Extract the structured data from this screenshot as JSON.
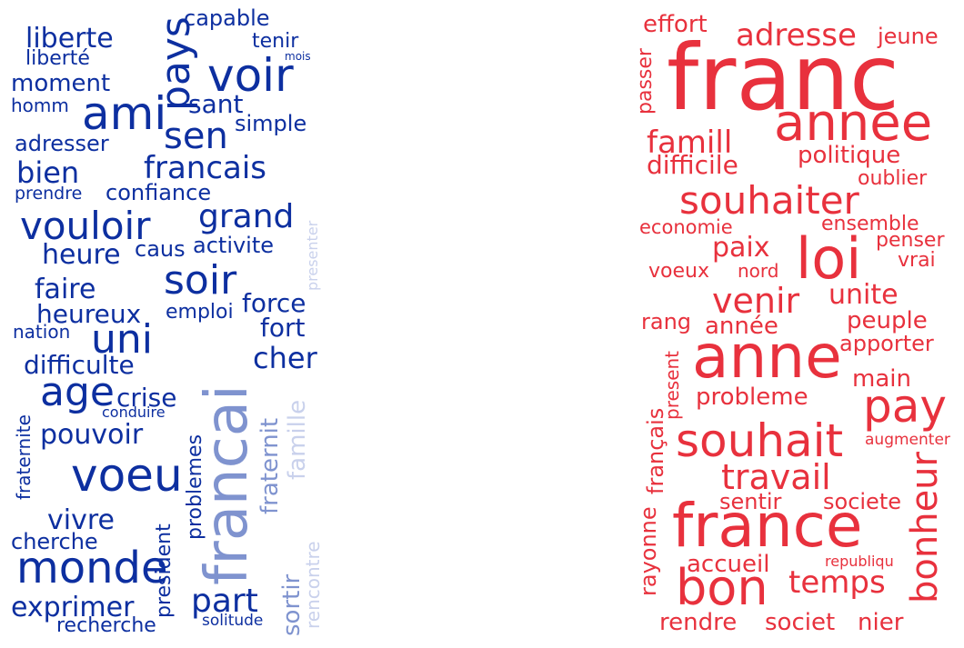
{
  "colors": {
    "blue_dark": "#0d2fa0",
    "blue_mid": "#7f93cf",
    "blue_light": "#c9d1ec",
    "red": "#e8313d",
    "background": "#ffffff"
  },
  "left_cloud": {
    "words": [
      {
        "text": "liberte",
        "color": "blue_dark"
      },
      {
        "text": "capable",
        "color": "blue_dark"
      },
      {
        "text": "tenir",
        "color": "blue_dark"
      },
      {
        "text": "liberté",
        "color": "blue_dark"
      },
      {
        "text": "mois",
        "color": "blue_dark"
      },
      {
        "text": "pays",
        "color": "blue_dark"
      },
      {
        "text": "voir",
        "color": "blue_dark"
      },
      {
        "text": "moment",
        "color": "blue_dark"
      },
      {
        "text": "homm",
        "color": "blue_dark"
      },
      {
        "text": "ami",
        "color": "blue_dark"
      },
      {
        "text": "sant",
        "color": "blue_dark"
      },
      {
        "text": "simple",
        "color": "blue_dark"
      },
      {
        "text": "sen",
        "color": "blue_dark"
      },
      {
        "text": "adresser",
        "color": "blue_dark"
      },
      {
        "text": "bien",
        "color": "blue_dark"
      },
      {
        "text": "francais",
        "color": "blue_dark"
      },
      {
        "text": "prendre",
        "color": "blue_dark"
      },
      {
        "text": "confiance",
        "color": "blue_dark"
      },
      {
        "text": "grand",
        "color": "blue_dark"
      },
      {
        "text": "vouloir",
        "color": "blue_dark"
      },
      {
        "text": "presenter",
        "color": "blue_light"
      },
      {
        "text": "heure",
        "color": "blue_dark"
      },
      {
        "text": "caus",
        "color": "blue_dark"
      },
      {
        "text": "activite",
        "color": "blue_dark"
      },
      {
        "text": "soir",
        "color": "blue_dark"
      },
      {
        "text": "faire",
        "color": "blue_dark"
      },
      {
        "text": "force",
        "color": "blue_dark"
      },
      {
        "text": "heureux",
        "color": "blue_dark"
      },
      {
        "text": "emploi",
        "color": "blue_dark"
      },
      {
        "text": "nation",
        "color": "blue_dark"
      },
      {
        "text": "uni",
        "color": "blue_dark"
      },
      {
        "text": "fort",
        "color": "blue_dark"
      },
      {
        "text": "cher",
        "color": "blue_dark"
      },
      {
        "text": "difficulte",
        "color": "blue_dark"
      },
      {
        "text": "francai",
        "color": "blue_mid"
      },
      {
        "text": "fraternite",
        "color": "blue_dark"
      },
      {
        "text": "age",
        "color": "blue_dark"
      },
      {
        "text": "crise",
        "color": "blue_dark"
      },
      {
        "text": "famille",
        "color": "blue_light"
      },
      {
        "text": "fraternit",
        "color": "blue_mid"
      },
      {
        "text": "conduire",
        "color": "blue_dark"
      },
      {
        "text": "pouvoir",
        "color": "blue_dark"
      },
      {
        "text": "problemes",
        "color": "blue_dark"
      },
      {
        "text": "voeu",
        "color": "blue_dark"
      },
      {
        "text": "vivre",
        "color": "blue_dark"
      },
      {
        "text": "rencontre",
        "color": "blue_light"
      },
      {
        "text": "cherche",
        "color": "blue_dark"
      },
      {
        "text": "president",
        "color": "blue_dark"
      },
      {
        "text": "monde",
        "color": "blue_dark"
      },
      {
        "text": "sortir",
        "color": "blue_mid"
      },
      {
        "text": "part",
        "color": "blue_dark"
      },
      {
        "text": "exprimer",
        "color": "blue_dark"
      },
      {
        "text": "solitude",
        "color": "blue_dark"
      },
      {
        "text": "recherche",
        "color": "blue_dark"
      }
    ]
  },
  "right_cloud": {
    "words": [
      {
        "text": "effort",
        "color": "red"
      },
      {
        "text": "adresse",
        "color": "red"
      },
      {
        "text": "jeune",
        "color": "red"
      },
      {
        "text": "passer",
        "color": "red"
      },
      {
        "text": "franc",
        "color": "red"
      },
      {
        "text": "annee",
        "color": "red"
      },
      {
        "text": "famill",
        "color": "red"
      },
      {
        "text": "politique",
        "color": "red"
      },
      {
        "text": "difficile",
        "color": "red"
      },
      {
        "text": "oublier",
        "color": "red"
      },
      {
        "text": "souhaiter",
        "color": "red"
      },
      {
        "text": "economie",
        "color": "red"
      },
      {
        "text": "ensemble",
        "color": "red"
      },
      {
        "text": "penser",
        "color": "red"
      },
      {
        "text": "paix",
        "color": "red"
      },
      {
        "text": "loi",
        "color": "red"
      },
      {
        "text": "vrai",
        "color": "red"
      },
      {
        "text": "voeux",
        "color": "red"
      },
      {
        "text": "nord",
        "color": "red"
      },
      {
        "text": "venir",
        "color": "red"
      },
      {
        "text": "unite",
        "color": "red"
      },
      {
        "text": "rang",
        "color": "red"
      },
      {
        "text": "année",
        "color": "red"
      },
      {
        "text": "peuple",
        "color": "red"
      },
      {
        "text": "present",
        "color": "red"
      },
      {
        "text": "anne",
        "color": "red"
      },
      {
        "text": "apporter",
        "color": "red"
      },
      {
        "text": "main",
        "color": "red"
      },
      {
        "text": "français",
        "color": "red"
      },
      {
        "text": "probleme",
        "color": "red"
      },
      {
        "text": "pay",
        "color": "red"
      },
      {
        "text": "souhait",
        "color": "red"
      },
      {
        "text": "augmenter",
        "color": "red"
      },
      {
        "text": "travail",
        "color": "red"
      },
      {
        "text": "bonheur",
        "color": "red"
      },
      {
        "text": "sentir",
        "color": "red"
      },
      {
        "text": "societe",
        "color": "red"
      },
      {
        "text": "rayonne",
        "color": "red"
      },
      {
        "text": "france",
        "color": "red"
      },
      {
        "text": "accueil",
        "color": "red"
      },
      {
        "text": "republiqu",
        "color": "red"
      },
      {
        "text": "temps",
        "color": "red"
      },
      {
        "text": "bon",
        "color": "red"
      },
      {
        "text": "rendre",
        "color": "red"
      },
      {
        "text": "societ",
        "color": "red"
      },
      {
        "text": "nier",
        "color": "red"
      }
    ]
  }
}
